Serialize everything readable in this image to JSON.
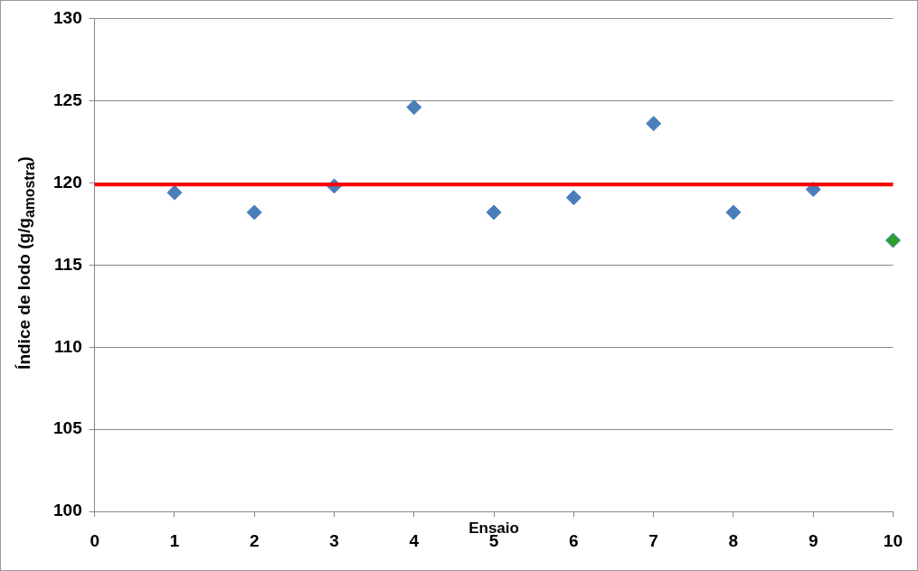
{
  "chart_data": {
    "type": "scatter",
    "xlabel": "Ensaio",
    "ylabel": "Índice de Iodo (g/g$_{amostra}$)",
    "x": [
      1,
      2,
      3,
      4,
      5,
      6,
      7,
      8,
      9,
      10
    ],
    "series": [
      {
        "color": "#4a7ebb",
        "colors": [
          "#4a7ebb",
          "#4a7ebb",
          "#4a7ebb",
          "#4a7ebb",
          "#4a7ebb",
          "#4a7ebb",
          "#4a7ebb",
          "#4a7ebb",
          "#4a7ebb",
          "#2ca02c"
        ],
        "values": [
          119.4,
          118.2,
          119.8,
          124.6,
          118.2,
          119.1,
          123.6,
          118.2,
          119.6,
          116.5
        ]
      }
    ],
    "ref_lines": [
      {
        "axis": "y",
        "value": 119.9,
        "color": "#ff0000"
      }
    ],
    "xlim": [
      0,
      10
    ],
    "xticks": [
      0,
      1,
      2,
      3,
      4,
      5,
      6,
      7,
      8,
      9,
      10
    ],
    "ylim": [
      100,
      130
    ],
    "yticks": [
      100,
      105,
      110,
      115,
      120,
      125,
      130
    ],
    "grid": "y",
    "marker": "diamond",
    "legend": false
  }
}
